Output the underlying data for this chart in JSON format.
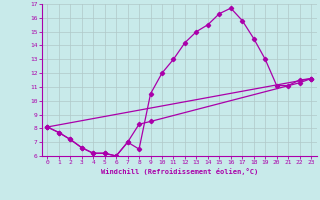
{
  "line1_x": [
    0,
    1,
    2,
    3,
    4,
    5,
    6,
    7,
    8,
    9,
    10,
    11,
    12,
    13,
    14,
    15,
    16,
    17,
    18,
    19,
    20,
    21,
    22,
    23
  ],
  "line1_y": [
    8.1,
    7.7,
    7.2,
    6.6,
    6.2,
    6.2,
    6.0,
    7.0,
    6.5,
    10.5,
    12.0,
    13.0,
    14.2,
    15.0,
    15.5,
    16.3,
    16.7,
    15.8,
    14.5,
    13.0,
    11.1,
    11.1,
    11.5,
    11.6
  ],
  "line2_x": [
    0,
    1,
    2,
    3,
    4,
    5,
    6,
    7,
    8,
    9,
    22,
    23
  ],
  "line2_y": [
    8.1,
    7.7,
    7.2,
    6.6,
    6.2,
    6.2,
    6.0,
    7.0,
    8.3,
    8.5,
    11.3,
    11.6
  ],
  "line3_x": [
    0,
    23
  ],
  "line3_y": [
    8.1,
    11.6
  ],
  "color": "#aa00aa",
  "bg_color": "#c8eaea",
  "grid_color": "#b0c8c8",
  "xlabel": "Windchill (Refroidissement éolien,°C)",
  "xlim": [
    -0.5,
    23.5
  ],
  "ylim": [
    6,
    17
  ],
  "yticks": [
    6,
    7,
    8,
    9,
    10,
    11,
    12,
    13,
    14,
    15,
    16,
    17
  ],
  "xticks": [
    0,
    1,
    2,
    3,
    4,
    5,
    6,
    7,
    8,
    9,
    10,
    11,
    12,
    13,
    14,
    15,
    16,
    17,
    18,
    19,
    20,
    21,
    22,
    23
  ],
  "marker": "D",
  "markersize": 2.2,
  "linewidth": 0.9
}
